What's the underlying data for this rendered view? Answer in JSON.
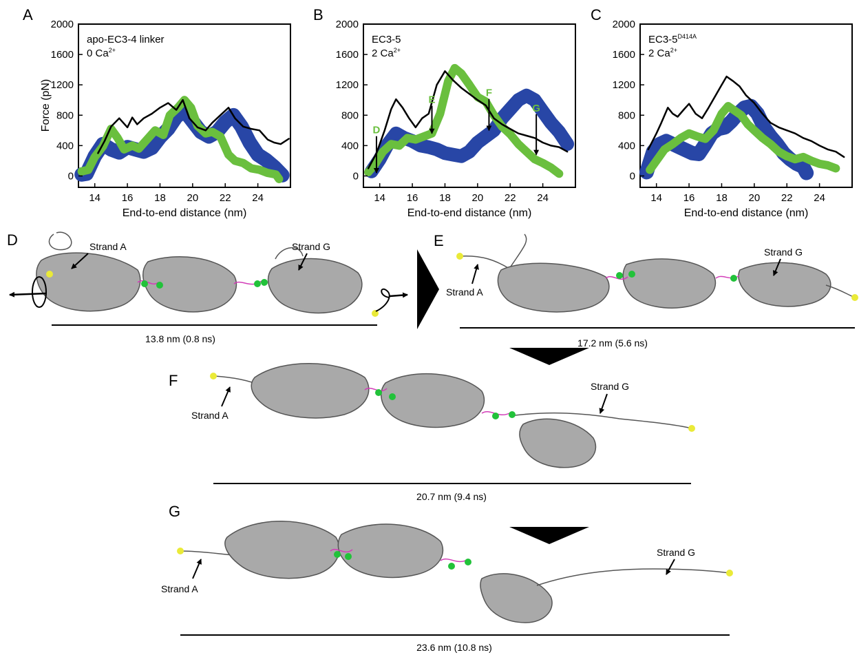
{
  "panel_letters": [
    "A",
    "B",
    "C",
    "D",
    "E",
    "F",
    "G"
  ],
  "charts": [
    {
      "letter": "A",
      "annotation_lines": [
        {
          "text": "apo-EC3-4 linker",
          "sup": ""
        },
        {
          "text": "0 Ca",
          "sup": "2+"
        }
      ],
      "markers": []
    },
    {
      "letter": "B",
      "annotation_lines": [
        {
          "text": "EC3-5",
          "sup": ""
        },
        {
          "text": "2 Ca",
          "sup": "2+"
        }
      ],
      "markers": [
        {
          "label": "D",
          "x": 13.8,
          "y_top": 560,
          "y_tip": 40
        },
        {
          "label": "E",
          "x": 17.2,
          "y_top": 960,
          "y_tip": 560
        },
        {
          "label": "F",
          "x": 20.7,
          "y_top": 1050,
          "y_tip": 600
        },
        {
          "label": "G",
          "x": 23.6,
          "y_top": 850,
          "y_tip": 280
        }
      ]
    },
    {
      "letter": "C",
      "annotation_lines": [
        {
          "text": "EC3-5",
          "sup": "D414A"
        },
        {
          "text": "2 Ca",
          "sup": "2+"
        }
      ],
      "markers": []
    }
  ],
  "chart_data": [
    {
      "type": "line",
      "title": "",
      "xlabel": "End-to-end distance (nm)",
      "ylabel": "Force (pN)",
      "xlim": [
        13,
        26
      ],
      "ylim": [
        -150,
        2000
      ],
      "xticks": [
        14,
        16,
        18,
        20,
        22,
        24
      ],
      "yticks": [
        0,
        400,
        800,
        1200,
        1600,
        2000
      ],
      "grid": false,
      "series": [
        {
          "color": "#000000",
          "band": 0,
          "x": [
            14.2,
            14.6,
            15.0,
            15.5,
            16.0,
            16.3,
            16.6,
            17.0,
            17.5,
            18.0,
            18.5,
            19.0,
            19.4,
            19.8,
            20.3,
            20.8,
            21.2,
            21.7,
            22.2,
            22.6,
            23.1,
            23.6,
            24.1,
            24.6,
            25.0,
            25.4,
            25.9
          ],
          "y": [
            300,
            460,
            650,
            760,
            640,
            770,
            680,
            760,
            820,
            900,
            960,
            870,
            1000,
            760,
            640,
            600,
            700,
            800,
            900,
            760,
            650,
            620,
            600,
            480,
            440,
            420,
            490
          ]
        },
        {
          "color": "#6abf3e",
          "band": 110,
          "x": [
            13.2,
            13.6,
            14.0,
            14.5,
            15.0,
            15.4,
            15.8,
            16.3,
            16.7,
            17.2,
            17.7,
            18.2,
            18.6,
            19.1,
            19.5,
            19.9,
            20.3,
            20.8,
            21.2,
            21.7,
            22.2,
            22.6,
            23.1,
            23.6,
            24.1,
            24.6,
            25.1,
            25.3
          ],
          "y": [
            60,
            80,
            250,
            390,
            620,
            500,
            350,
            400,
            360,
            480,
            600,
            540,
            800,
            900,
            1000,
            900,
            660,
            560,
            580,
            520,
            280,
            200,
            170,
            100,
            80,
            40,
            20,
            -40
          ]
        },
        {
          "color": "#2846a6",
          "band": 190,
          "x": [
            13.2,
            13.5,
            14.0,
            14.5,
            15.0,
            15.5,
            16.0,
            16.5,
            17.0,
            17.5,
            18.0,
            18.5,
            19.0,
            19.5,
            20.0,
            20.5,
            21.0,
            21.5,
            22.0,
            22.5,
            23.0,
            23.5,
            24.0,
            24.5,
            25.0,
            25.5
          ],
          "y": [
            20,
            30,
            260,
            420,
            350,
            310,
            380,
            350,
            320,
            370,
            510,
            620,
            780,
            860,
            720,
            580,
            520,
            580,
            710,
            800,
            650,
            440,
            280,
            210,
            120,
            10
          ]
        }
      ]
    },
    {
      "type": "line",
      "title": "",
      "xlabel": "End-to-end distance (nm)",
      "ylabel": "",
      "xlim": [
        13,
        26
      ],
      "ylim": [
        -150,
        2000
      ],
      "xticks": [
        14,
        16,
        18,
        20,
        22,
        24
      ],
      "yticks": [
        0,
        400,
        800,
        1200,
        1600,
        2000
      ],
      "grid": false,
      "series": [
        {
          "color": "#000000",
          "band": 0,
          "x": [
            13.3,
            13.8,
            14.3,
            14.7,
            15.0,
            15.4,
            15.8,
            16.2,
            16.6,
            17.0,
            17.5,
            18.0,
            18.5,
            19.0,
            19.5,
            20.0,
            20.5,
            21.0,
            21.5,
            22.0,
            22.5,
            23.0,
            23.5,
            24.0,
            24.5,
            25.0,
            25.5
          ],
          "y": [
            100,
            300,
            600,
            880,
            1010,
            900,
            760,
            640,
            760,
            820,
            1200,
            1380,
            1260,
            1160,
            1080,
            1000,
            930,
            760,
            680,
            620,
            560,
            530,
            500,
            440,
            400,
            380,
            320
          ]
        },
        {
          "color": "#6abf3e",
          "band": 110,
          "x": [
            13.3,
            13.7,
            14.2,
            14.7,
            15.2,
            15.7,
            16.2,
            16.7,
            17.2,
            17.7,
            18.2,
            18.6,
            19.0,
            19.5,
            20.0,
            20.5,
            21.0,
            21.5,
            22.0,
            22.5,
            23.0,
            23.5,
            24.0,
            24.5,
            25.0
          ],
          "y": [
            50,
            150,
            320,
            420,
            400,
            500,
            480,
            520,
            560,
            820,
            1250,
            1420,
            1350,
            1200,
            1040,
            980,
            800,
            650,
            550,
            420,
            320,
            220,
            170,
            110,
            30
          ]
        },
        {
          "color": "#2846a6",
          "band": 180,
          "x": [
            13.5,
            14.0,
            14.5,
            15.0,
            15.5,
            16.0,
            16.5,
            17.0,
            17.5,
            18.0,
            18.5,
            19.0,
            19.5,
            20.0,
            20.5,
            21.0,
            21.5,
            22.0,
            22.5,
            23.0,
            23.5,
            24.0,
            24.5,
            25.0,
            25.5
          ],
          "y": [
            60,
            220,
            420,
            560,
            500,
            460,
            400,
            380,
            350,
            300,
            280,
            260,
            320,
            440,
            520,
            600,
            760,
            880,
            1000,
            1060,
            1000,
            850,
            700,
            580,
            420
          ]
        }
      ]
    },
    {
      "type": "line",
      "title": "",
      "xlabel": "End-to-end distance (nm)",
      "ylabel": "",
      "xlim": [
        13,
        26
      ],
      "ylim": [
        -150,
        2000
      ],
      "xticks": [
        14,
        16,
        18,
        20,
        22,
        24
      ],
      "yticks": [
        0,
        400,
        800,
        1200,
        1600,
        2000
      ],
      "grid": false,
      "series": [
        {
          "color": "#000000",
          "band": 0,
          "x": [
            13.5,
            14.0,
            14.3,
            14.7,
            15.0,
            15.3,
            15.7,
            16.0,
            16.4,
            16.8,
            17.2,
            17.6,
            18.0,
            18.3,
            18.7,
            19.1,
            19.5,
            20.0,
            20.5,
            21.0,
            21.5,
            22.0,
            22.5,
            23.0,
            23.5,
            24.0,
            24.5,
            25.0,
            25.5
          ],
          "y": [
            350,
            560,
            700,
            900,
            820,
            780,
            880,
            950,
            820,
            760,
            900,
            1050,
            1200,
            1310,
            1250,
            1180,
            1060,
            960,
            820,
            700,
            640,
            600,
            560,
            500,
            460,
            400,
            350,
            320,
            250
          ]
        },
        {
          "color": "#6abf3e",
          "band": 110,
          "x": [
            13.6,
            14.0,
            14.5,
            15.0,
            15.5,
            16.0,
            16.5,
            17.0,
            17.5,
            18.0,
            18.4,
            18.8,
            19.2,
            19.6,
            20.0,
            20.5,
            21.0,
            21.5,
            22.0,
            22.5,
            23.0,
            23.5,
            24.0,
            24.5,
            25.0
          ],
          "y": [
            80,
            200,
            350,
            420,
            500,
            560,
            520,
            490,
            600,
            820,
            920,
            860,
            800,
            680,
            600,
            500,
            420,
            320,
            260,
            220,
            250,
            200,
            160,
            140,
            100
          ]
        },
        {
          "color": "#2846a6",
          "band": 190,
          "x": [
            13.4,
            13.8,
            14.2,
            14.6,
            15.0,
            15.4,
            15.8,
            16.2,
            16.6,
            17.0,
            17.4,
            17.8,
            18.2,
            18.6,
            19.0,
            19.4,
            19.8,
            20.2,
            20.6,
            21.0,
            21.4,
            21.8,
            22.2,
            22.6,
            23.0,
            23.2
          ],
          "y": [
            50,
            320,
            420,
            460,
            420,
            380,
            340,
            300,
            290,
            420,
            560,
            620,
            640,
            720,
            820,
            900,
            920,
            820,
            640,
            520,
            420,
            300,
            220,
            160,
            120,
            40
          ]
        }
      ]
    }
  ],
  "legend_colors": {
    "md1": "#000000",
    "md2": "#6abf3e",
    "md3": "#2846a6"
  },
  "structure_colors": {
    "ribbon": "#a9a9a9",
    "calcium": "#22c23a",
    "terminus": "#eaea38",
    "linker": "#d23cb8"
  },
  "snapshots": [
    {
      "letter": "D",
      "length_label": "13.8 nm (0.8 ns)",
      "strand_a": "Strand A",
      "strand_g": "Strand G"
    },
    {
      "letter": "E",
      "length_label": "17.2 nm (5.6 ns)",
      "strand_a": "Strand A",
      "strand_g": "Strand G"
    },
    {
      "letter": "F",
      "length_label": "20.7 nm (9.4 ns)",
      "strand_a": "Strand A",
      "strand_g": "Strand G"
    },
    {
      "letter": "G",
      "length_label": "23.6 nm (10.8 ns)",
      "strand_a": "Strand A",
      "strand_g": "Strand G"
    }
  ]
}
